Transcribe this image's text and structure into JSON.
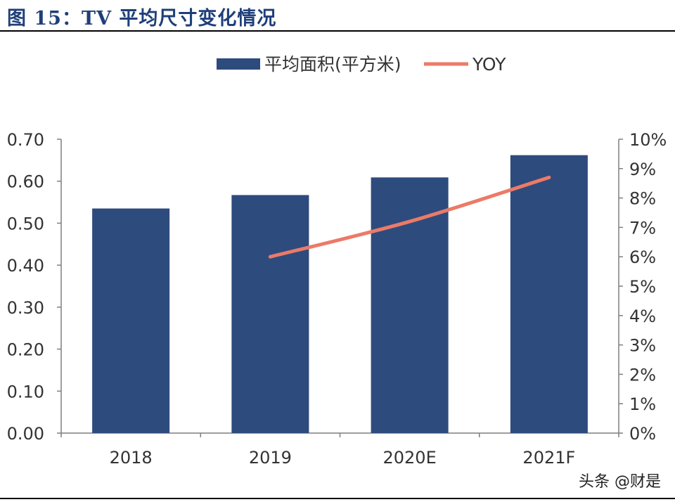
{
  "figure_title": "图 15：TV 平均尺寸变化情况",
  "watermark": "头条 @财是",
  "colors": {
    "bar": "#2e4b7d",
    "line": "#ec7a68",
    "title": "#1f3f7a",
    "axis": "#7f7f7f"
  },
  "chart_data": {
    "type": "bar",
    "categories": [
      "2018",
      "2019",
      "2020E",
      "2021F"
    ],
    "series": [
      {
        "name": "平均面积(平方米)",
        "type": "bar",
        "axis": "left",
        "values": [
          0.535,
          0.567,
          0.609,
          0.662
        ]
      },
      {
        "name": "YOY",
        "type": "line",
        "axis": "right",
        "values": [
          null,
          0.06,
          0.072,
          0.087
        ]
      }
    ],
    "y_left": {
      "ticks": [
        "0.00",
        "0.10",
        "0.20",
        "0.30",
        "0.40",
        "0.50",
        "0.60",
        "0.70"
      ],
      "lim": [
        0,
        0.7
      ]
    },
    "y_right": {
      "ticks": [
        "0%",
        "1%",
        "2%",
        "3%",
        "4%",
        "5%",
        "6%",
        "7%",
        "8%",
        "9%",
        "10%"
      ],
      "lim": [
        0,
        0.1
      ]
    },
    "grid": false,
    "legend_position": "top-center"
  }
}
